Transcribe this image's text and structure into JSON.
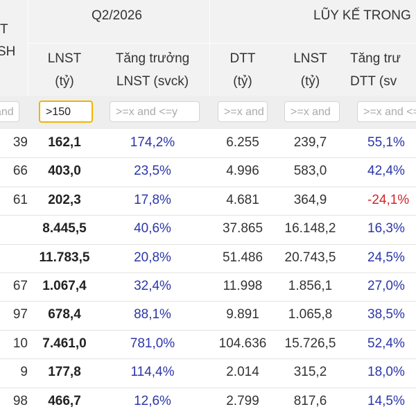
{
  "header": {
    "left_partial": {
      "line1": "T",
      "line2": "SH"
    },
    "group_q2": "Q2/2026",
    "group_ytd": "LŨY KẾ TRONG",
    "columns": [
      {
        "line1": "LNST",
        "line2": "(tỷ)"
      },
      {
        "line1": "Tăng trưởng",
        "line2": "LNST (svck)"
      },
      {
        "line1": "DTT",
        "line2": "(tỷ)"
      },
      {
        "line1": "LNST",
        "line2": "(tỷ)"
      },
      {
        "line1": "Tăng trư",
        "line2": "DTT (sv"
      }
    ]
  },
  "filters": [
    {
      "value": "and",
      "placeholder": ""
    },
    {
      "value": ">150",
      "placeholder": ""
    },
    {
      "value": "",
      "placeholder": ">=x and <=y"
    },
    {
      "value": "",
      "placeholder": ">=x and"
    },
    {
      "value": "",
      "placeholder": ">=x and"
    },
    {
      "value": "",
      "placeholder": ">=x and <="
    }
  ],
  "rows": [
    {
      "left": "39",
      "lnst": "162,1",
      "growth": "174,2%",
      "dtt": "6.255",
      "lnst_ytd": "239,7",
      "dtt_growth": "55,1%",
      "dtt_growth_neg": false
    },
    {
      "left": "66",
      "lnst": "403,0",
      "growth": "23,5%",
      "dtt": "4.996",
      "lnst_ytd": "583,0",
      "dtt_growth": "42,4%",
      "dtt_growth_neg": false
    },
    {
      "left": "61",
      "lnst": "202,3",
      "growth": "17,8%",
      "dtt": "4.681",
      "lnst_ytd": "364,9",
      "dtt_growth": "-24,1%",
      "dtt_growth_neg": true
    },
    {
      "left": "",
      "lnst": "8.445,5",
      "growth": "40,6%",
      "dtt": "37.865",
      "lnst_ytd": "16.148,2",
      "dtt_growth": "16,3%",
      "dtt_growth_neg": false
    },
    {
      "left": "",
      "lnst": "11.783,5",
      "growth": "20,8%",
      "dtt": "51.486",
      "lnst_ytd": "20.743,5",
      "dtt_growth": "24,5%",
      "dtt_growth_neg": false
    },
    {
      "left": "67",
      "lnst": "1.067,4",
      "growth": "32,4%",
      "dtt": "11.998",
      "lnst_ytd": "1.856,1",
      "dtt_growth": "27,0%",
      "dtt_growth_neg": false
    },
    {
      "left": "97",
      "lnst": "678,4",
      "growth": "88,1%",
      "dtt": "9.891",
      "lnst_ytd": "1.065,8",
      "dtt_growth": "38,5%",
      "dtt_growth_neg": false
    },
    {
      "left": "10",
      "lnst": "7.461,0",
      "growth": "781,0%",
      "dtt": "104.636",
      "lnst_ytd": "15.726,5",
      "dtt_growth": "52,4%",
      "dtt_growth_neg": false
    },
    {
      "left": "9",
      "lnst": "177,8",
      "growth": "114,4%",
      "dtt": "2.014",
      "lnst_ytd": "315,2",
      "dtt_growth": "18,0%",
      "dtt_growth_neg": false
    },
    {
      "left": "98",
      "lnst": "466,7",
      "growth": "12,6%",
      "dtt": "2.799",
      "lnst_ytd": "817,6",
      "dtt_growth": "14,5%",
      "dtt_growth_neg": false
    }
  ]
}
